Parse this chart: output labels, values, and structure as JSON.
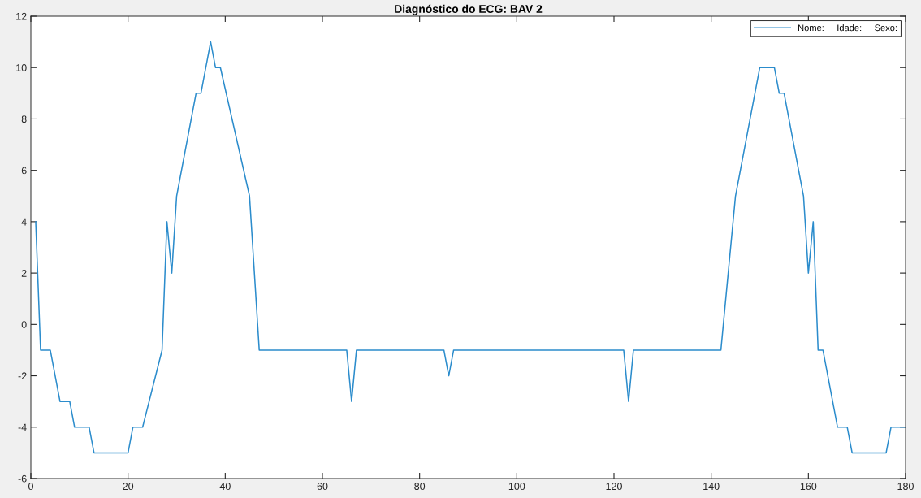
{
  "chart_data": {
    "type": "line",
    "title": "Diagnóstico do ECG: BAV 2",
    "x": [
      1,
      2,
      4,
      6,
      8,
      9,
      12,
      13,
      20,
      21,
      23,
      27,
      28,
      29,
      30,
      34,
      35,
      37,
      38,
      39,
      45,
      47,
      65,
      66,
      67,
      85,
      86,
      87,
      122,
      123,
      124,
      142,
      145,
      150,
      153,
      154,
      155,
      159,
      160,
      161,
      162,
      163,
      166,
      168,
      169,
      176,
      177,
      180
    ],
    "series": [
      {
        "name": "Nome:     Idade:     Sexo:",
        "color": "#2b8ccc",
        "values": [
          4,
          -1,
          -1,
          -3,
          -3,
          -4,
          -4,
          -5,
          -5,
          -4,
          -4,
          -1,
          4,
          2,
          5,
          9,
          9,
          11,
          10,
          10,
          5,
          -1,
          -1,
          -3,
          -1,
          -1,
          -2,
          -1,
          -1,
          -3,
          -1,
          -1,
          5,
          10,
          10,
          9,
          9,
          5,
          2,
          4,
          -1,
          -1,
          -4,
          -4,
          -5,
          -5,
          -4,
          -4
        ]
      }
    ],
    "xlim": [
      0,
      180
    ],
    "xticks": [
      0,
      20,
      40,
      60,
      80,
      100,
      120,
      140,
      160,
      180
    ],
    "ylim": [
      -6,
      12
    ],
    "yticks": [
      -6,
      -4,
      -2,
      0,
      2,
      4,
      6,
      8,
      10,
      12
    ],
    "grid": false,
    "legend": "top right",
    "marker": "none",
    "line_style": "solid"
  }
}
